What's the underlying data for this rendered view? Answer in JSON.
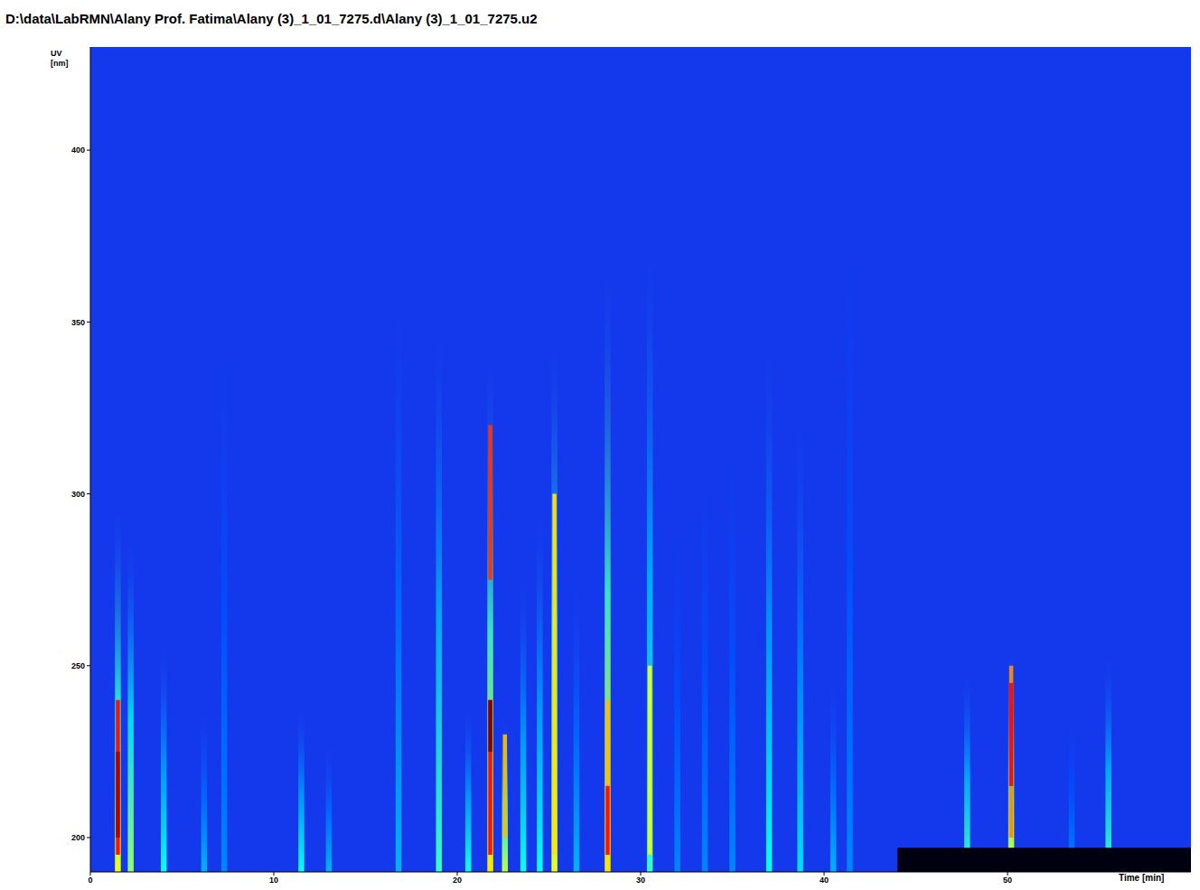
{
  "chart_data": {
    "type": "heatmap",
    "title": "D:\\data\\LabRMN\\Alany Prof. Fatima\\Alany (3)_1_01_7275.d\\Alany (3)_1_01_7275.u2",
    "xlabel": "Time [min]",
    "ylabel": "UV [nm]",
    "xlim": [
      0,
      60
    ],
    "xticks": [
      0,
      10,
      20,
      30,
      40,
      50
    ],
    "ylim": [
      190,
      430
    ],
    "yticks": [
      200,
      250,
      300,
      350,
      400
    ],
    "grid": false,
    "peaks": [
      [
        1.5,
        300,
        0.55
      ],
      [
        2.2,
        290,
        0.45
      ],
      [
        4.0,
        260,
        0.3
      ],
      [
        6.2,
        240,
        0.2
      ],
      [
        7.3,
        360,
        0.15
      ],
      [
        11.5,
        240,
        0.3
      ],
      [
        13.0,
        230,
        0.2
      ],
      [
        16.8,
        370,
        0.2
      ],
      [
        19.0,
        355,
        0.35
      ],
      [
        20.6,
        240,
        0.3
      ],
      [
        21.8,
        345,
        0.6
      ],
      [
        22.6,
        235,
        0.5
      ],
      [
        23.6,
        280,
        0.3
      ],
      [
        24.5,
        300,
        0.3
      ],
      [
        25.3,
        350,
        0.55
      ],
      [
        26.5,
        280,
        0.2
      ],
      [
        28.2,
        370,
        0.6
      ],
      [
        30.5,
        380,
        0.35
      ],
      [
        32.0,
        300,
        0.15
      ],
      [
        33.5,
        320,
        0.15
      ],
      [
        35.0,
        330,
        0.15
      ],
      [
        37.0,
        350,
        0.3
      ],
      [
        38.7,
        330,
        0.25
      ],
      [
        40.5,
        250,
        0.2
      ],
      [
        41.4,
        390,
        0.15
      ],
      [
        47.8,
        250,
        0.35
      ],
      [
        50.2,
        255,
        0.55
      ],
      [
        53.5,
        240,
        0.15
      ],
      [
        55.5,
        255,
        0.35
      ]
    ],
    "hot_spots": [
      [
        1.5,
        195,
        240,
        0.85
      ],
      [
        1.5,
        200,
        225,
        0.95
      ],
      [
        21.8,
        195,
        240,
        0.85
      ],
      [
        21.8,
        225,
        240,
        1.0
      ],
      [
        21.8,
        275,
        320,
        0.8
      ],
      [
        22.6,
        200,
        230,
        0.65
      ],
      [
        25.3,
        195,
        300,
        0.6
      ],
      [
        28.2,
        200,
        240,
        0.65
      ],
      [
        28.2,
        195,
        215,
        0.85
      ],
      [
        30.5,
        195,
        250,
        0.55
      ],
      [
        50.2,
        200,
        250,
        0.7
      ],
      [
        50.2,
        215,
        245,
        0.85
      ]
    ],
    "dark_band": {
      "time": [
        44,
        60
      ],
      "wl": [
        190,
        197
      ]
    }
  }
}
